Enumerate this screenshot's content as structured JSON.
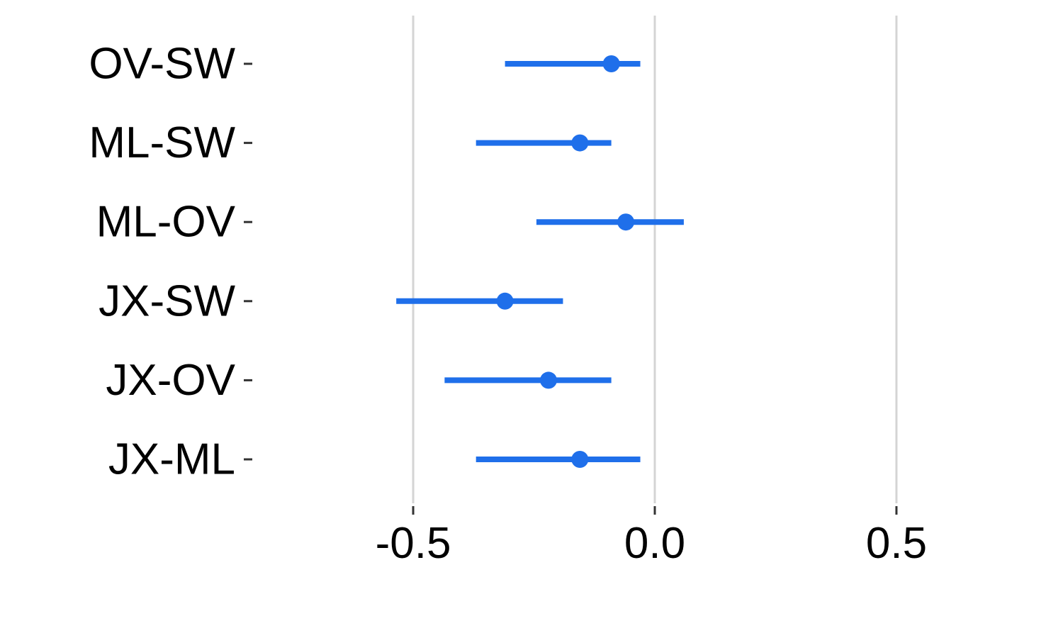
{
  "chart_data": {
    "type": "scatter",
    "subtype": "point-range (forest plot)",
    "title": "",
    "xlabel": "",
    "ylabel": "",
    "categories": [
      "OV-SW",
      "ML-SW",
      "ML-OV",
      "JX-SW",
      "JX-OV",
      "JX-ML"
    ],
    "estimates": [
      -0.09,
      -0.155,
      -0.06,
      -0.31,
      -0.22,
      -0.155
    ],
    "lower": [
      -0.31,
      -0.37,
      -0.245,
      -0.535,
      -0.435,
      -0.37
    ],
    "upper": [
      -0.03,
      -0.09,
      0.06,
      -0.19,
      -0.09,
      -0.03
    ],
    "x_ticks": [
      -0.5,
      0.0,
      0.5
    ],
    "x_tick_labels": [
      "-0.5",
      "0.0",
      "0.5"
    ],
    "xlim": [
      -0.83,
      0.83
    ],
    "grid": "vertical major gridlines",
    "legend": "none",
    "colors": {
      "series": "#1f6fea",
      "grid": "#d4d4d4",
      "tick": "#333333",
      "text": "#000000"
    }
  }
}
